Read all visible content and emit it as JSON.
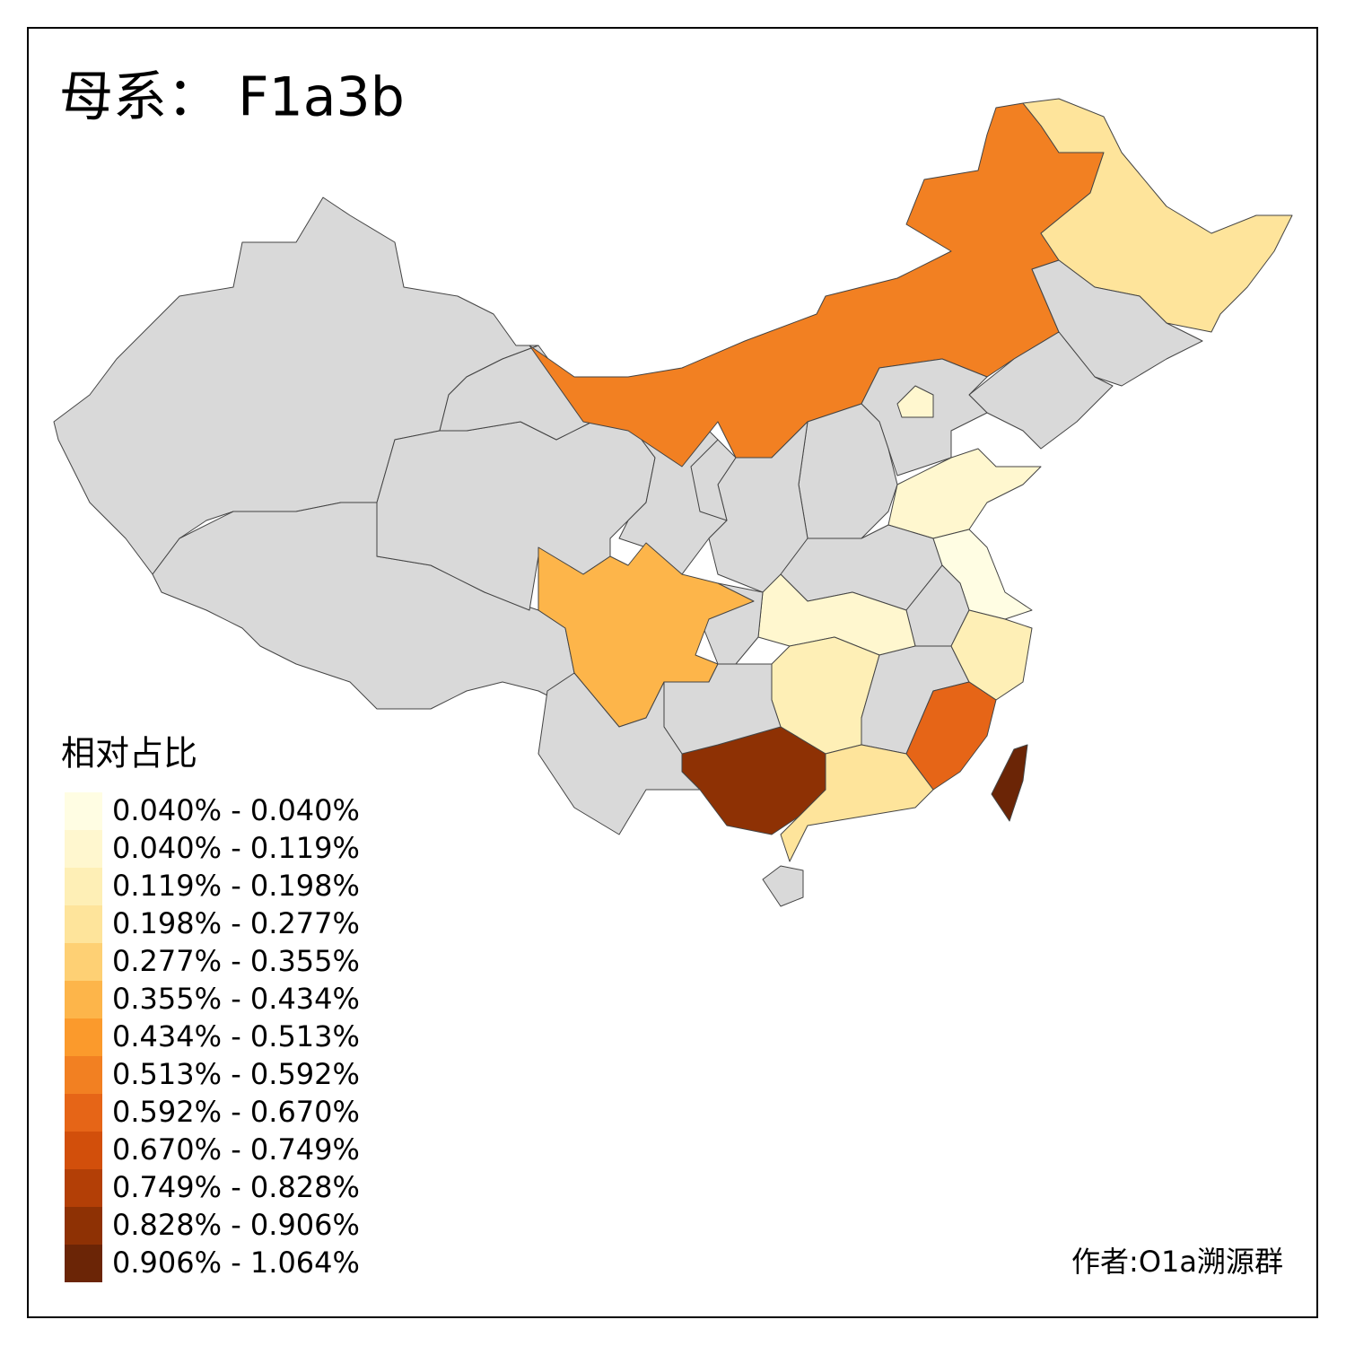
{
  "title": "母系： F1a3b",
  "legend": {
    "title": "相对占比",
    "labels": [
      "0.040% - 0.040%",
      "0.040% - 0.119%",
      "0.119% - 0.198%",
      "0.198% - 0.277%",
      "0.277% - 0.355%",
      "0.355% - 0.434%",
      "0.434% - 0.513%",
      "0.513% - 0.592%",
      "0.592% - 0.670%",
      "0.670% - 0.749%",
      "0.749% - 0.828%",
      "0.828% - 0.906%",
      "0.906% - 1.064%"
    ],
    "colors": [
      "#fffde3",
      "#fff7cf",
      "#feefb6",
      "#fee49b",
      "#fed074",
      "#fdb54a",
      "#fb9a2c",
      "#f28022",
      "#e66517",
      "#d24f0b",
      "#b33f06",
      "#8e3104",
      "#6b2506"
    ]
  },
  "author": "作者:O1a溯源群"
}
